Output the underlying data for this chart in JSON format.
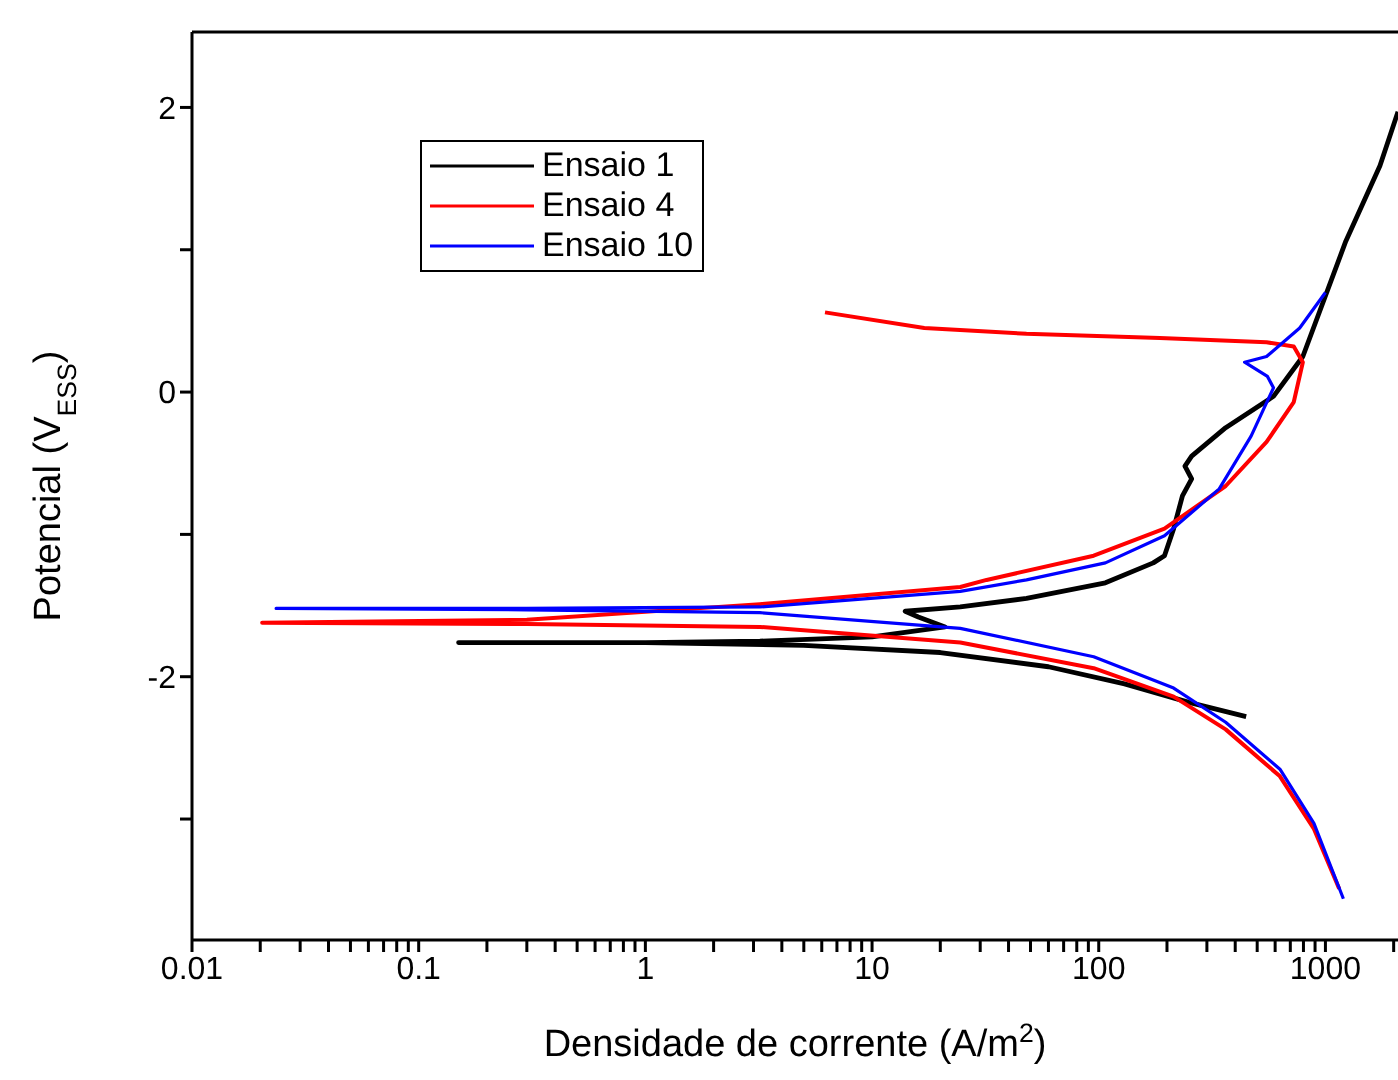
{
  "chart_data": {
    "type": "line",
    "xlabel": "Densidade de corrente (A/m$^{2}$)",
    "ylabel": "Potencial (V$_{ESS}$)",
    "log": "x",
    "xlim": [
      0.01,
      2090
    ],
    "ylim": [
      -3.85,
      2.53
    ],
    "xticks": [
      0.01,
      {
        "value": 0.02,
        "label": null
      },
      {
        "value": 0.03,
        "label": null
      },
      {
        "value": 0.04,
        "label": null
      },
      {
        "value": 0.05,
        "label": null
      },
      {
        "value": 0.06,
        "label": null
      },
      {
        "value": 0.07,
        "label": null
      },
      {
        "value": 0.08,
        "label": null
      },
      {
        "value": 0.09,
        "label": null
      },
      0.1,
      {
        "value": 0.2,
        "label": null
      },
      {
        "value": 0.3,
        "label": null
      },
      {
        "value": 0.4,
        "label": null
      },
      {
        "value": 0.5,
        "label": null
      },
      {
        "value": 0.6,
        "label": null
      },
      {
        "value": 0.7,
        "label": null
      },
      {
        "value": 0.8,
        "label": null
      },
      {
        "value": 0.9,
        "label": null
      },
      1,
      {
        "value": 2,
        "label": null
      },
      {
        "value": 3,
        "label": null
      },
      {
        "value": 4,
        "label": null
      },
      {
        "value": 5,
        "label": null
      },
      {
        "value": 6,
        "label": null
      },
      {
        "value": 7,
        "label": null
      },
      {
        "value": 8,
        "label": null
      },
      {
        "value": 9,
        "label": null
      },
      10,
      {
        "value": 20,
        "label": null
      },
      {
        "value": 30,
        "label": null
      },
      {
        "value": 40,
        "label": null
      },
      {
        "value": 50,
        "label": null
      },
      {
        "value": 60,
        "label": null
      },
      {
        "value": 70,
        "label": null
      },
      {
        "value": 80,
        "label": null
      },
      {
        "value": 90,
        "label": null
      },
      100,
      {
        "value": 200,
        "label": null
      },
      {
        "value": 300,
        "label": null
      },
      {
        "value": 400,
        "label": null
      },
      {
        "value": 500,
        "label": null
      },
      {
        "value": 600,
        "label": null
      },
      {
        "value": 700,
        "label": null
      },
      {
        "value": 800,
        "label": null
      },
      {
        "value": 900,
        "label": null
      },
      1000,
      {
        "value": 2000,
        "label": null
      }
    ],
    "yticks": [
      {
        "value": -3,
        "label": null
      },
      -2,
      {
        "value": -1,
        "label": null
      },
      0,
      {
        "value": 1,
        "label": null
      },
      2
    ],
    "legend": "top left",
    "grid": false,
    "marker": "none",
    "line_style": "solid",
    "series": [
      {
        "name": "Ensaio 1",
        "color": "#000000",
        "x": [
          447,
          250,
          130,
          60,
          20,
          5,
          1,
          0.15,
          1,
          3.2,
          10,
          21,
          16,
          14,
          24.5,
          48,
          107,
          174,
          195,
          214,
          234,
          257,
          240,
          257,
          363,
          590,
          795,
          1230,
          1740,
          2090
        ],
        "values": [
          -2.28,
          -2.18,
          -2.05,
          -1.93,
          -1.83,
          -1.78,
          -1.76,
          -1.76,
          -1.76,
          -1.75,
          -1.72,
          -1.65,
          -1.58,
          -1.54,
          -1.51,
          -1.45,
          -1.34,
          -1.2,
          -1.15,
          -0.96,
          -0.73,
          -0.61,
          -0.52,
          -0.45,
          -0.25,
          -0.03,
          0.25,
          1.06,
          1.59,
          1.97
        ]
      },
      {
        "name": "Ensaio 4",
        "color": "#ff0000",
        "x": [
          1150,
          890,
          630,
          363,
          214,
          95,
          24.5,
          3.2,
          0.3,
          0.0204,
          0.3,
          3.2,
          24.5,
          32,
          95,
          195,
          363,
          550,
          725,
          795,
          725,
          550,
          186,
          48,
          17,
          6.2
        ],
        "values": [
          -3.49,
          -3.07,
          -2.7,
          -2.37,
          -2.14,
          -1.94,
          -1.76,
          -1.65,
          -1.63,
          -1.62,
          -1.6,
          -1.49,
          -1.37,
          -1.32,
          -1.15,
          -0.96,
          -0.66,
          -0.35,
          -0.07,
          0.21,
          0.32,
          0.35,
          0.38,
          0.41,
          0.45,
          0.56
        ]
      },
      {
        "name": "Ensaio 10",
        "color": "#0000ff",
        "x": [
          1200,
          890,
          630,
          363,
          214,
          95,
          24.5,
          3.2,
          0.3,
          0.0235,
          0.3,
          3.2,
          24.5,
          48,
          107,
          195,
          340,
          470,
          590,
          555,
          440,
          550,
          770,
          1000
        ],
        "values": [
          -3.56,
          -3.03,
          -2.65,
          -2.32,
          -2.08,
          -1.86,
          -1.66,
          -1.55,
          -1.53,
          -1.52,
          -1.52,
          -1.51,
          -1.4,
          -1.32,
          -1.2,
          -1.01,
          -0.68,
          -0.31,
          0.03,
          0.11,
          0.21,
          0.25,
          0.45,
          0.7
        ]
      }
    ]
  }
}
